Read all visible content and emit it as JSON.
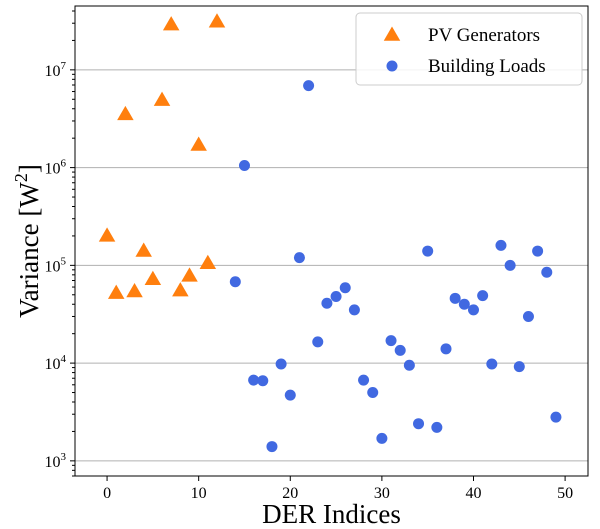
{
  "chart_data": {
    "type": "scatter",
    "xlabel": "DER Indices",
    "ylabel": "Variance [W",
    "ylabel_sup": "2",
    "ylabel_close": "]",
    "xlim": [
      -3.5,
      52.5
    ],
    "ylim": [
      700,
      45000000
    ],
    "yscale": "log",
    "grid": "y-major",
    "legend_position": "top-right",
    "x_ticks": [
      0,
      10,
      20,
      30,
      40,
      50
    ],
    "y_ticks": [
      {
        "value": 1000,
        "base": "10",
        "exp": "3"
      },
      {
        "value": 10000,
        "base": "10",
        "exp": "4"
      },
      {
        "value": 100000,
        "base": "10",
        "exp": "5"
      },
      {
        "value": 1000000,
        "base": "10",
        "exp": "6"
      },
      {
        "value": 10000000,
        "base": "10",
        "exp": "7"
      }
    ],
    "series": [
      {
        "name": "PV Generators",
        "marker": "triangle",
        "color": "#ff7f0e",
        "points": [
          [
            0,
            200000
          ],
          [
            1,
            52000
          ],
          [
            2,
            3500000
          ],
          [
            3,
            54000
          ],
          [
            4,
            140000
          ],
          [
            5,
            72000
          ],
          [
            6,
            4900000
          ],
          [
            7,
            29000000
          ],
          [
            8,
            55000
          ],
          [
            9,
            78000
          ],
          [
            10,
            1700000
          ],
          [
            11,
            105000
          ],
          [
            12,
            31000000
          ]
        ]
      },
      {
        "name": "Building Loads",
        "marker": "circle",
        "color": "#4169e1",
        "points": [
          [
            14,
            68000
          ],
          [
            15,
            1050000
          ],
          [
            16,
            6700
          ],
          [
            17,
            6600
          ],
          [
            18,
            1400
          ],
          [
            19,
            9800
          ],
          [
            20,
            4700
          ],
          [
            21,
            120000
          ],
          [
            22,
            6900000
          ],
          [
            23,
            16500
          ],
          [
            24,
            41000
          ],
          [
            25,
            48000
          ],
          [
            26,
            59000
          ],
          [
            27,
            35000
          ],
          [
            28,
            6700
          ],
          [
            29,
            5000
          ],
          [
            30,
            1700
          ],
          [
            31,
            17000
          ],
          [
            32,
            13500
          ],
          [
            33,
            9500
          ],
          [
            34,
            2400
          ],
          [
            35,
            140000
          ],
          [
            36,
            2200
          ],
          [
            37,
            14000
          ],
          [
            38,
            46000
          ],
          [
            39,
            40000
          ],
          [
            40,
            35000
          ],
          [
            41,
            49000
          ],
          [
            42,
            9800
          ],
          [
            43,
            160000
          ],
          [
            44,
            100000
          ],
          [
            45,
            9200
          ],
          [
            46,
            30000
          ],
          [
            47,
            140000
          ],
          [
            48,
            85000
          ],
          [
            49,
            2800
          ]
        ]
      }
    ]
  }
}
